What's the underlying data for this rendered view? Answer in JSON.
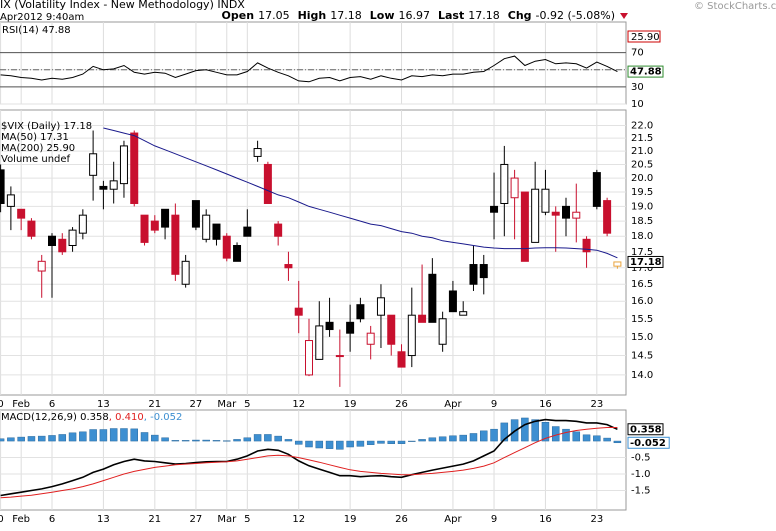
{
  "header": {
    "title": "IX (Volatility Index - New Methodology) INDX",
    "date": "Apr2012 9:40am",
    "quote": [
      {
        "label": "Open",
        "value": "17.05"
      },
      {
        "label": "High",
        "value": "17.18"
      },
      {
        "label": "Low",
        "value": "16.97"
      },
      {
        "label": "Last",
        "value": "17.18"
      },
      {
        "label": "Chg",
        "value": "-0.92 (-5.08%)"
      }
    ],
    "watermark": "© StockCharts.com"
  },
  "chart_data": [
    {
      "type": "line",
      "title": "RSI(14) 47.88",
      "ylim": [
        10,
        100
      ],
      "yticks": [
        10,
        30,
        50,
        70
      ],
      "bands": [
        30,
        70
      ],
      "midline": 50,
      "color": "#000000",
      "values": [
        44,
        43,
        41,
        40,
        38,
        40,
        39,
        41,
        45,
        54,
        50,
        51,
        55,
        47,
        45,
        47,
        46,
        41,
        45,
        49,
        50,
        47,
        44,
        44,
        48,
        58,
        52,
        47,
        43,
        37,
        36,
        40,
        41,
        37,
        41,
        42,
        39,
        43,
        40,
        38,
        43,
        42,
        44,
        43,
        45,
        45,
        47,
        48,
        55,
        63,
        66,
        55,
        60,
        62,
        57,
        58,
        57,
        52,
        59,
        54,
        47.88
      ],
      "tags": [
        {
          "value": 47.88,
          "label": "47.88",
          "color": "#2e8b2e"
        }
      ]
    },
    {
      "type": "candlestick",
      "log": true,
      "ylim": [
        13.5,
        22.3
      ],
      "yticks": [
        {
          "value": 14,
          "label": "14.0"
        },
        14.5,
        {
          "value": 15,
          "label": "15.0"
        },
        15.5,
        {
          "value": 16,
          "label": "16.0"
        },
        16.5,
        {
          "value": 17,
          "label": "17.0"
        },
        17.5,
        {
          "value": 18,
          "label": "18.0"
        },
        18.5,
        {
          "value": 19,
          "label": "19.0"
        },
        19.5,
        {
          "value": 20,
          "label": "20.0"
        },
        20.5,
        {
          "value": 21,
          "label": "21.0"
        },
        21.5,
        {
          "value": 22,
          "label": "22.0"
        }
      ],
      "categories": [
        "0",
        null,
        "Feb",
        null,
        null,
        "6",
        null,
        null,
        null,
        null,
        "13",
        null,
        null,
        null,
        null,
        "21",
        null,
        null,
        null,
        "27",
        null,
        null,
        "Mar",
        null,
        "5",
        null,
        null,
        null,
        null,
        "12",
        null,
        null,
        null,
        null,
        "19",
        null,
        null,
        null,
        null,
        "26",
        null,
        null,
        null,
        null,
        "Apr",
        null,
        null,
        null,
        "9",
        null,
        null,
        null,
        null,
        "16",
        null,
        null,
        null,
        null,
        "23",
        null,
        null
      ],
      "open": [
        20.3,
        19.0,
        18.9,
        18.5,
        16.9,
        18.0,
        17.9,
        17.7,
        18.1,
        20.1,
        19.7,
        19.6,
        19.8,
        21.7,
        18.7,
        18.5,
        18.9,
        18.7,
        16.5,
        19.2,
        17.9,
        18.4,
        18.0,
        17.7,
        18.3,
        20.8,
        20.5,
        18.4,
        17.1,
        15.8,
        14.0,
        14.4,
        15.4,
        14.5,
        15.4,
        15.9,
        14.8,
        15.6,
        15.6,
        14.6,
        14.5,
        15.6,
        16.8,
        14.8,
        16.3,
        15.6,
        17.1,
        17.1,
        19.0,
        19.1,
        19.3,
        19.5,
        17.8,
        18.8,
        18.8,
        19.0,
        18.6,
        17.9,
        20.2,
        19.2,
        17.05
      ],
      "high": [
        20.5,
        19.7,
        18.9,
        18.6,
        17.4,
        18.1,
        18.1,
        18.3,
        18.9,
        21.8,
        19.9,
        20.6,
        21.4,
        21.8,
        18.7,
        18.7,
        18.9,
        19.1,
        17.4,
        19.2,
        18.9,
        18.4,
        18.1,
        17.8,
        18.9,
        21.4,
        20.6,
        18.5,
        17.5,
        16.6,
        15.5,
        16.0,
        16.1,
        15.2,
        15.9,
        16.1,
        15.3,
        16.5,
        15.6,
        14.8,
        16.4,
        17.1,
        17.3,
        15.7,
        16.6,
        16.0,
        17.7,
        17.4,
        20.2,
        21.2,
        20.3,
        19.5,
        20.6,
        20.3,
        19.0,
        19.3,
        19.8,
        18.0,
        20.3,
        19.3,
        17.18
      ],
      "low": [
        18.8,
        18.2,
        18.2,
        17.9,
        16.1,
        16.1,
        17.4,
        17.5,
        17.9,
        19.2,
        18.9,
        19.1,
        19.3,
        19.0,
        17.7,
        18.1,
        17.9,
        16.6,
        16.4,
        18.2,
        17.8,
        17.7,
        17.2,
        17.2,
        18.0,
        20.6,
        19.1,
        17.7,
        16.6,
        15.1,
        13.97,
        14.4,
        15.0,
        13.7,
        14.6,
        15.4,
        14.4,
        14.7,
        14.5,
        14.2,
        14.2,
        15.4,
        15.4,
        14.6,
        15.7,
        15.6,
        16.3,
        16.2,
        17.9,
        18.0,
        17.9,
        17.2,
        17.8,
        18.7,
        17.5,
        18.0,
        17.8,
        17.0,
        18.9,
        18.0,
        16.97
      ],
      "close": [
        19.1,
        19.4,
        18.6,
        18.0,
        17.2,
        17.7,
        17.5,
        18.2,
        18.7,
        20.9,
        19.6,
        19.9,
        21.2,
        19.1,
        17.8,
        18.2,
        18.3,
        16.8,
        17.2,
        18.3,
        18.7,
        17.9,
        17.3,
        17.2,
        18.0,
        21.1,
        19.1,
        18.0,
        17.0,
        15.6,
        14.9,
        15.3,
        15.2,
        14.5,
        15.1,
        15.5,
        15.1,
        16.1,
        14.8,
        14.2,
        15.6,
        15.4,
        15.4,
        15.5,
        15.7,
        15.7,
        16.5,
        16.7,
        18.8,
        20.5,
        20.0,
        17.2,
        19.6,
        19.6,
        18.7,
        18.6,
        18.8,
        17.5,
        19.0,
        18.1,
        17.18
      ],
      "colors": [
        "#000",
        "#000",
        "#c8102e",
        "#c8102e",
        "#c8102e",
        "#000",
        "#c8102e",
        "#000",
        "#000",
        "#000",
        "#000",
        "#000",
        "#000",
        "#c8102e",
        "#c8102e",
        "#c8102e",
        "#000",
        "#c8102e",
        "#000",
        "#000",
        "#000",
        "#000",
        "#c8102e",
        "#000",
        "#000",
        "#000",
        "#c8102e",
        "#c8102e",
        "#c8102e",
        "#c8102e",
        "#c8102e",
        "#000",
        "#000",
        "#c8102e",
        "#000",
        "#000",
        "#c8102e",
        "#000",
        "#c8102e",
        "#c8102e",
        "#000",
        "#c8102e",
        "#000",
        "#000",
        "#000",
        "#000",
        "#000",
        "#000",
        "#000",
        "#000",
        "#c8102e",
        "#c8102e",
        "#000",
        "#000",
        "#c8102e",
        "#000",
        "#c8102e",
        "#c8102e",
        "#000",
        "#c8102e",
        "#e8a33d"
      ],
      "ma50": {
        "color": "#1a1a8c",
        "values": [
          null,
          null,
          null,
          null,
          null,
          null,
          null,
          null,
          null,
          null,
          21.9,
          21.8,
          21.7,
          21.6,
          21.4,
          21.2,
          21.05,
          20.9,
          20.75,
          20.6,
          20.45,
          20.3,
          20.15,
          20.0,
          19.85,
          19.7,
          19.55,
          19.4,
          19.3,
          19.15,
          19.0,
          18.9,
          18.8,
          18.7,
          18.6,
          18.5,
          18.4,
          18.35,
          18.25,
          18.15,
          18.1,
          18.0,
          17.95,
          17.85,
          17.8,
          17.75,
          17.7,
          17.65,
          17.62,
          17.6,
          17.6,
          17.6,
          17.62,
          17.63,
          17.63,
          17.62,
          17.6,
          17.58,
          17.55,
          17.45,
          17.31
        ]
      },
      "legend": [
        {
          "text": "$VIX (Daily) 17.18",
          "color": "#000000"
        },
        {
          "text": "MA(50) 17.31",
          "color": "#1a1a8c"
        },
        {
          "text": "MA(200) 25.90",
          "color": "#cc0000"
        },
        {
          "text": "Volume undef",
          "color": "#000000"
        }
      ],
      "ma200_tag": "25.90",
      "tags": [
        {
          "value": 17.18,
          "label": "17.18",
          "color": "#000000"
        }
      ]
    },
    {
      "type": "macd",
      "ylim": [
        -2.09,
        0.79
      ],
      "yticks": [
        -1.5,
        {
          "value": -1,
          "label": "-1.0"
        },
        -0.5
      ],
      "series": [
        {
          "name": "MACD(12,26,9) 0.358",
          "color": "#000000",
          "kind": "line",
          "values": [
            -1.65,
            -1.6,
            -1.55,
            -1.5,
            -1.45,
            -1.38,
            -1.3,
            -1.2,
            -1.1,
            -0.95,
            -0.85,
            -0.72,
            -0.62,
            -0.55,
            -0.6,
            -0.62,
            -0.66,
            -0.7,
            -0.68,
            -0.65,
            -0.63,
            -0.62,
            -0.62,
            -0.55,
            -0.45,
            -0.3,
            -0.25,
            -0.28,
            -0.4,
            -0.6,
            -0.75,
            -0.85,
            -0.95,
            -1.05,
            -1.05,
            -1.08,
            -1.06,
            -1.05,
            -1.08,
            -1.1,
            -1.02,
            -0.95,
            -0.88,
            -0.82,
            -0.76,
            -0.7,
            -0.6,
            -0.45,
            -0.3,
            0.05,
            0.3,
            0.5,
            0.6,
            0.65,
            0.62,
            0.62,
            0.6,
            0.55,
            0.55,
            0.5,
            0.358
          ]
        },
        {
          "name": ", 0.410",
          "color": "#e02020",
          "kind": "line",
          "values": [
            -1.72,
            -1.7,
            -1.67,
            -1.64,
            -1.6,
            -1.55,
            -1.5,
            -1.45,
            -1.38,
            -1.3,
            -1.2,
            -1.1,
            -1.0,
            -0.92,
            -0.86,
            -0.8,
            -0.76,
            -0.72,
            -0.7,
            -0.68,
            -0.66,
            -0.64,
            -0.63,
            -0.6,
            -0.55,
            -0.5,
            -0.45,
            -0.43,
            -0.45,
            -0.5,
            -0.57,
            -0.64,
            -0.72,
            -0.8,
            -0.87,
            -0.92,
            -0.95,
            -0.98,
            -1.0,
            -1.02,
            -1.02,
            -1.0,
            -0.98,
            -0.95,
            -0.92,
            -0.88,
            -0.83,
            -0.76,
            -0.66,
            -0.5,
            -0.35,
            -0.2,
            -0.05,
            0.08,
            0.18,
            0.26,
            0.32,
            0.36,
            0.39,
            0.41,
            0.41
          ]
        },
        {
          "name": ", -0.052",
          "color": "#3d8fd1",
          "kind": "bar",
          "values": [
            0.07,
            0.1,
            0.12,
            0.14,
            0.15,
            0.17,
            0.2,
            0.25,
            0.28,
            0.35,
            0.35,
            0.38,
            0.38,
            0.37,
            0.26,
            0.18,
            0.1,
            0.02,
            0.02,
            0.03,
            0.03,
            0.02,
            0.01,
            0.05,
            0.1,
            0.2,
            0.2,
            0.15,
            0.05,
            -0.1,
            -0.18,
            -0.21,
            -0.23,
            -0.25,
            -0.18,
            -0.16,
            -0.11,
            -0.07,
            -0.08,
            -0.08,
            0,
            0.05,
            0.1,
            0.13,
            0.16,
            0.18,
            0.23,
            0.31,
            0.36,
            0.55,
            0.65,
            0.7,
            0.65,
            0.57,
            0.44,
            0.36,
            0.28,
            0.19,
            0.16,
            0.09,
            -0.052
          ]
        }
      ],
      "tags": [
        {
          "value": 0.358,
          "label": "0.358",
          "color": "#000000"
        },
        {
          "value": -0.052,
          "label": "-0.052",
          "color": "#3d8fd1"
        }
      ]
    }
  ]
}
